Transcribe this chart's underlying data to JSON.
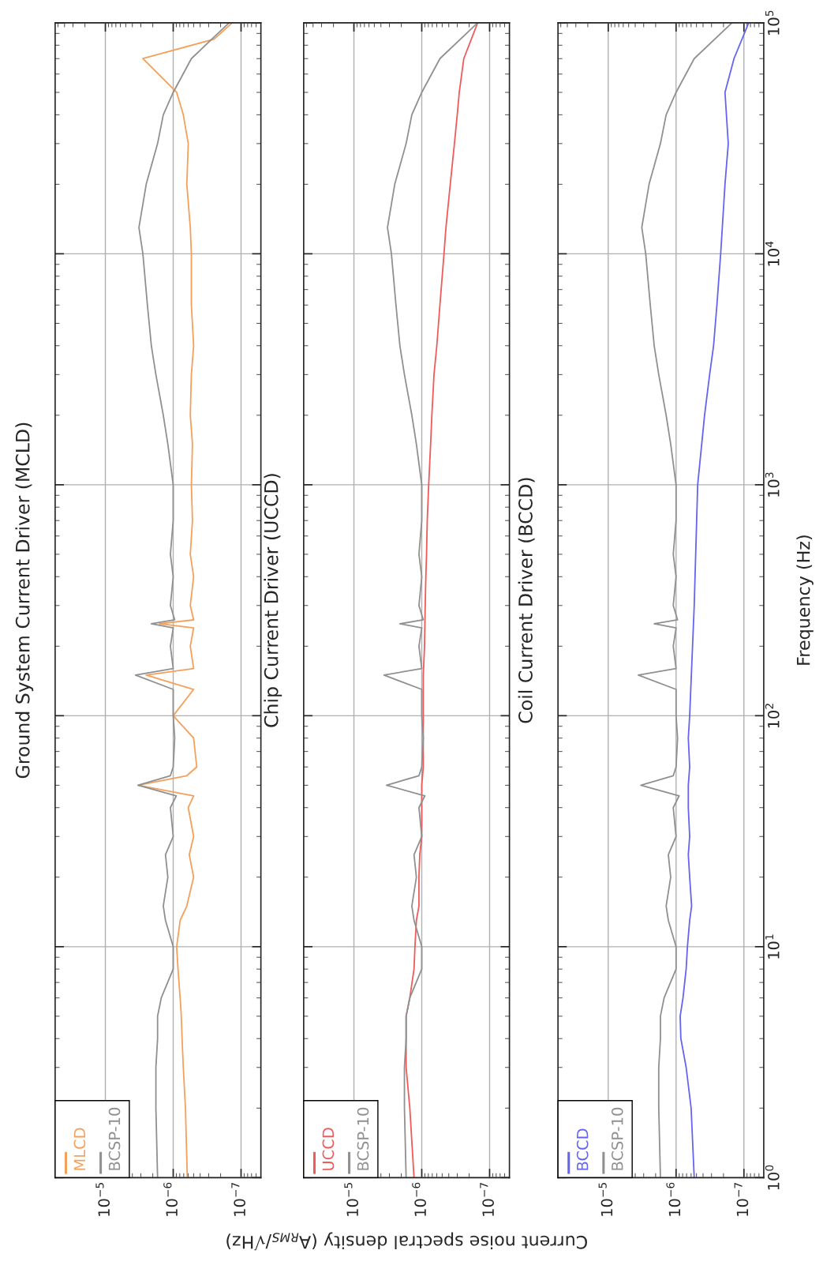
{
  "chart_data": [
    {
      "type": "line",
      "title": "Ground System Current Driver (MCLD)",
      "log": "xy",
      "grid": true,
      "legend": "bottom left",
      "tick_labels": "x",
      "ylim": [
        1,
        100000
      ],
      "yticks": [
        {
          "value": 1,
          "label": null
        },
        {
          "value": 10,
          "label": null
        },
        {
          "value": 100,
          "label": null
        },
        {
          "value": 1000,
          "label": null
        },
        {
          "value": 10000,
          "label": null
        },
        {
          "value": 100000,
          "label": null
        }
      ],
      "xlim": [
        5.5e-05,
        5.1e-08
      ],
      "xticks": [
        {
          "value": 1e-07,
          "label": "10$^{−7}$"
        },
        {
          "value": 1e-06,
          "label": "10$^{−6}$"
        },
        {
          "value": 1e-05,
          "label": "10$^{−5}$"
        }
      ],
      "series": [
        {
          "name": "MLCD",
          "color": "#f5a05a",
          "values": [
            1,
            2,
            3,
            4,
            5,
            6,
            8,
            10,
            13,
            15,
            20,
            25,
            30,
            40,
            45,
            50,
            55,
            60,
            80,
            100,
            130,
            150,
            160,
            200,
            240,
            250,
            260,
            300,
            400,
            500,
            700,
            1000,
            1500,
            2000,
            3000,
            4000,
            6000,
            10000,
            13000,
            20000,
            30000,
            40000,
            50000,
            70000,
            85000,
            100000
          ],
          "x": [
            6.2e-07,
            6.6e-07,
            7.1e-07,
            7.4e-07,
            7.6e-07,
            7.9e-07,
            8.5e-07,
            8.9e-07,
            7.9e-07,
            6.3e-07,
            5e-07,
            5.8e-07,
            5e-07,
            6e-07,
            5e-07,
            3.3e-06,
            6.3e-07,
            4.5e-07,
            5e-07,
            1e-06,
            5e-07,
            2.5e-06,
            5e-07,
            5.6e-07,
            5e-07,
            1.6e-06,
            5e-07,
            5.6e-07,
            5e-07,
            5.6e-07,
            5.2e-07,
            5.4e-07,
            5.2e-07,
            5.6e-07,
            5.4e-07,
            5e-07,
            5.4e-07,
            5.4e-07,
            5.6e-07,
            6.3e-07,
            6e-07,
            7.1e-07,
            8.9e-07,
            2.8e-06,
            2.5e-07,
            1.35e-07
          ]
        },
        {
          "name": "BCSP-10",
          "color": "#909090",
          "values": [
            1,
            2,
            3,
            4,
            5,
            6,
            8,
            10,
            13,
            15,
            20,
            25,
            30,
            40,
            45,
            50,
            55,
            60,
            80,
            100,
            130,
            150,
            160,
            200,
            240,
            250,
            260,
            300,
            400,
            500,
            700,
            1000,
            1500,
            2000,
            3000,
            4000,
            6000,
            10000,
            13000,
            20000,
            30000,
            40000,
            50000,
            70000,
            100000
          ],
          "x": [
            1.7e-06,
            1.8e-06,
            1.8e-06,
            1.7e-06,
            1.7e-06,
            1.5e-06,
            1e-06,
            1e-06,
            1.3e-06,
            1.4e-06,
            1.2e-06,
            1.3e-06,
            1e-06,
            1.1e-06,
            9e-07,
            3.3e-06,
            1.1e-06,
            1e-06,
            9.5e-07,
            1e-06,
            1e-06,
            3.6e-06,
            1e-06,
            1.1e-06,
            1e-06,
            2.1e-06,
            9.5e-07,
            1.1e-06,
            1e-06,
            1.1e-06,
            1e-06,
            1e-06,
            1.2e-06,
            1.4e-06,
            1.8e-06,
            2.1e-06,
            2.4e-06,
            2.8e-06,
            3.2e-06,
            2.5e-06,
            1.7e-06,
            1.4e-06,
            1e-06,
            5.4e-07,
            1.5e-07
          ]
        }
      ]
    },
    {
      "type": "line",
      "title": "Chip Current Driver (UCCD)",
      "xlabel": "Current noise spectral density (A$_{RMS}$/√Hz)",
      "log": "xy",
      "grid": true,
      "legend": "bottom left",
      "tick_labels": "x",
      "ylim": [
        1,
        100000
      ],
      "yticks": [
        {
          "value": 1,
          "label": null
        },
        {
          "value": 10,
          "label": null
        },
        {
          "value": 100,
          "label": null
        },
        {
          "value": 1000,
          "label": null
        },
        {
          "value": 10000,
          "label": null
        },
        {
          "value": 100000,
          "label": null
        }
      ],
      "xlim": [
        5.5e-05,
        5.1e-08
      ],
      "xticks": [
        {
          "value": 1e-07,
          "label": "10$^{−7}$"
        },
        {
          "value": 1e-06,
          "label": "10$^{−6}$"
        },
        {
          "value": 1e-05,
          "label": "10$^{−5}$"
        }
      ],
      "series": [
        {
          "name": "UCCD",
          "color": "#f05a5a",
          "values": [
            1,
            2,
            3,
            4,
            5,
            6,
            8,
            10,
            13,
            15,
            20,
            25,
            30,
            40,
            50,
            60,
            80,
            100,
            150,
            200,
            300,
            400,
            500,
            700,
            1000,
            1500,
            2000,
            3000,
            4000,
            6000,
            10000,
            13000,
            20000,
            30000,
            40000,
            50000,
            70000,
            100000
          ],
          "x": [
            1.3e-06,
            1.5e-06,
            1.7e-06,
            1.7e-06,
            1.7e-06,
            1.5e-06,
            1.3e-06,
            1.26e-06,
            1.2e-06,
            1.1e-06,
            1.1e-06,
            1.07e-06,
            1e-06,
            1e-06,
            1e-06,
            9.5e-07,
            9.5e-07,
            9.5e-07,
            9.5e-07,
            9.1e-07,
            8.9e-07,
            8.7e-07,
            8.5e-07,
            8.3e-07,
            7.9e-07,
            7.4e-07,
            7.1e-07,
            6.6e-07,
            6e-07,
            5.4e-07,
            4.7e-07,
            4.4e-07,
            3.8e-07,
            3.3e-07,
            3e-07,
            2.8e-07,
            2.4e-07,
            1.5e-07
          ]
        },
        {
          "name": "BCSP-10",
          "color": "#909090",
          "values": [
            1,
            2,
            3,
            4,
            5,
            6,
            8,
            10,
            13,
            15,
            20,
            25,
            30,
            40,
            45,
            50,
            55,
            60,
            80,
            100,
            130,
            150,
            160,
            200,
            240,
            250,
            260,
            300,
            400,
            500,
            700,
            1000,
            1500,
            2000,
            3000,
            4000,
            6000,
            10000,
            13000,
            20000,
            30000,
            40000,
            50000,
            70000,
            100000
          ],
          "x": [
            1.7e-06,
            1.8e-06,
            1.8e-06,
            1.7e-06,
            1.7e-06,
            1.5e-06,
            1e-06,
            1e-06,
            1.3e-06,
            1.4e-06,
            1.2e-06,
            1.3e-06,
            1e-06,
            1.1e-06,
            9e-07,
            3.3e-06,
            1.1e-06,
            1e-06,
            9.5e-07,
            1e-06,
            1e-06,
            3.6e-06,
            1e-06,
            1.1e-06,
            1e-06,
            2.1e-06,
            9.5e-07,
            1.1e-06,
            1e-06,
            1.1e-06,
            1e-06,
            1e-06,
            1.2e-06,
            1.4e-06,
            1.8e-06,
            2.1e-06,
            2.4e-06,
            2.8e-06,
            3.2e-06,
            2.5e-06,
            1.7e-06,
            1.4e-06,
            1e-06,
            5.4e-07,
            1.5e-07
          ]
        }
      ]
    },
    {
      "type": "line",
      "title": "Coil Current Driver (BCCD)",
      "ylabel": "Frequency (Hz)",
      "log": "xy",
      "grid": true,
      "legend": "bottom left",
      "ylim": [
        1,
        100000
      ],
      "yticks": [
        {
          "value": 1,
          "label": "10$^{0}$"
        },
        {
          "value": 10,
          "label": "10$^{1}$"
        },
        {
          "value": 100,
          "label": "10$^{2}$"
        },
        {
          "value": 1000,
          "label": "10$^{3}$"
        },
        {
          "value": 10000,
          "label": "10$^{4}$"
        },
        {
          "value": 100000,
          "label": "10$^{5}$"
        }
      ],
      "xlim": [
        5.5e-05,
        5.1e-08
      ],
      "xticks": [
        {
          "value": 1e-07,
          "label": "10$^{−7}$"
        },
        {
          "value": 1e-06,
          "label": "10$^{−6}$"
        },
        {
          "value": 1e-05,
          "label": "10$^{−5}$"
        }
      ],
      "series": [
        {
          "name": "BCCD",
          "color": "#6464f0",
          "values": [
            1,
            2,
            3,
            4,
            5,
            6,
            8,
            10,
            13,
            15,
            20,
            25,
            30,
            40,
            50,
            60,
            80,
            100,
            300,
            1000,
            2000,
            3000,
            4000,
            6000,
            10000,
            20000,
            30000,
            50000,
            70000,
            100000
          ],
          "x": [
            5.4e-07,
            6e-07,
            7.1e-07,
            8.5e-07,
            8.7e-07,
            7.9e-07,
            7.1e-07,
            6.8e-07,
            6.3e-07,
            5.9e-07,
            6.3e-07,
            6.6e-07,
            6.3e-07,
            6.6e-07,
            6.6e-07,
            6.3e-07,
            6.6e-07,
            6.3e-07,
            5.4e-07,
            4.8e-07,
            3.8e-07,
            3.2e-07,
            2.8e-07,
            2.5e-07,
            2.2e-07,
            1.9e-07,
            1.7e-07,
            1.9e-07,
            1.4e-07,
            8.5e-08
          ]
        },
        {
          "name": "BCSP-10",
          "color": "#909090",
          "values": [
            1,
            2,
            3,
            4,
            5,
            6,
            8,
            10,
            13,
            15,
            20,
            25,
            30,
            40,
            45,
            50,
            55,
            60,
            80,
            100,
            130,
            150,
            160,
            200,
            240,
            250,
            260,
            300,
            400,
            500,
            700,
            1000,
            1500,
            2000,
            3000,
            4000,
            6000,
            10000,
            13000,
            20000,
            30000,
            40000,
            50000,
            70000,
            100000
          ],
          "x": [
            1.7e-06,
            1.8e-06,
            1.8e-06,
            1.7e-06,
            1.7e-06,
            1.5e-06,
            1e-06,
            1e-06,
            1.3e-06,
            1.4e-06,
            1.2e-06,
            1.3e-06,
            1e-06,
            1.1e-06,
            9e-07,
            3.3e-06,
            1.1e-06,
            1e-06,
            9.5e-07,
            1e-06,
            1e-06,
            3.6e-06,
            1e-06,
            1.1e-06,
            1e-06,
            2.1e-06,
            9.5e-07,
            1.1e-06,
            1e-06,
            1.1e-06,
            1e-06,
            1e-06,
            1.2e-06,
            1.4e-06,
            1.8e-06,
            2.1e-06,
            2.4e-06,
            2.8e-06,
            3.2e-06,
            2.5e-06,
            1.7e-06,
            1.4e-06,
            1e-06,
            5.4e-07,
            1.5e-07
          ]
        }
      ]
    }
  ]
}
